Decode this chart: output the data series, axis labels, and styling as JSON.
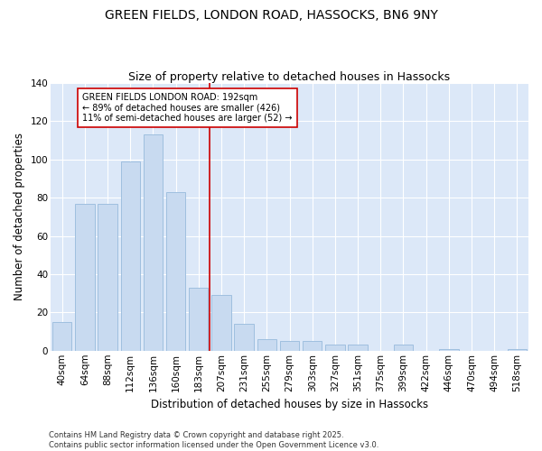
{
  "title": "GREEN FIELDS, LONDON ROAD, HASSOCKS, BN6 9NY",
  "subtitle": "Size of property relative to detached houses in Hassocks",
  "xlabel": "Distribution of detached houses by size in Hassocks",
  "ylabel": "Number of detached properties",
  "bar_color": "#c8daf0",
  "bar_edge_color": "#9fbfdf",
  "background_color": "#ffffff",
  "plot_bg_color": "#dce8f8",
  "grid_color": "#ffffff",
  "categories": [
    "40sqm",
    "64sqm",
    "88sqm",
    "112sqm",
    "136sqm",
    "160sqm",
    "183sqm",
    "207sqm",
    "231sqm",
    "255sqm",
    "279sqm",
    "303sqm",
    "327sqm",
    "351sqm",
    "375sqm",
    "399sqm",
    "422sqm",
    "446sqm",
    "470sqm",
    "494sqm",
    "518sqm"
  ],
  "values": [
    15,
    77,
    77,
    99,
    113,
    83,
    33,
    29,
    14,
    6,
    5,
    5,
    3,
    3,
    0,
    3,
    0,
    1,
    0,
    0,
    1
  ],
  "ylim": [
    0,
    140
  ],
  "yticks": [
    0,
    20,
    40,
    60,
    80,
    100,
    120,
    140
  ],
  "property_line_bin": 6,
  "annotation_title": "GREEN FIELDS LONDON ROAD: 192sqm",
  "annotation_line1": "← 89% of detached houses are smaller (426)",
  "annotation_line2": "11% of semi-detached houses are larger (52) →",
  "annotation_box_color": "#ffffff",
  "annotation_border_color": "#cc0000",
  "footer": "Contains HM Land Registry data © Crown copyright and database right 2025.\nContains public sector information licensed under the Open Government Licence v3.0.",
  "title_fontsize": 10,
  "subtitle_fontsize": 9,
  "axis_label_fontsize": 8.5,
  "tick_fontsize": 7.5,
  "annotation_fontsize": 7,
  "footer_fontsize": 6
}
